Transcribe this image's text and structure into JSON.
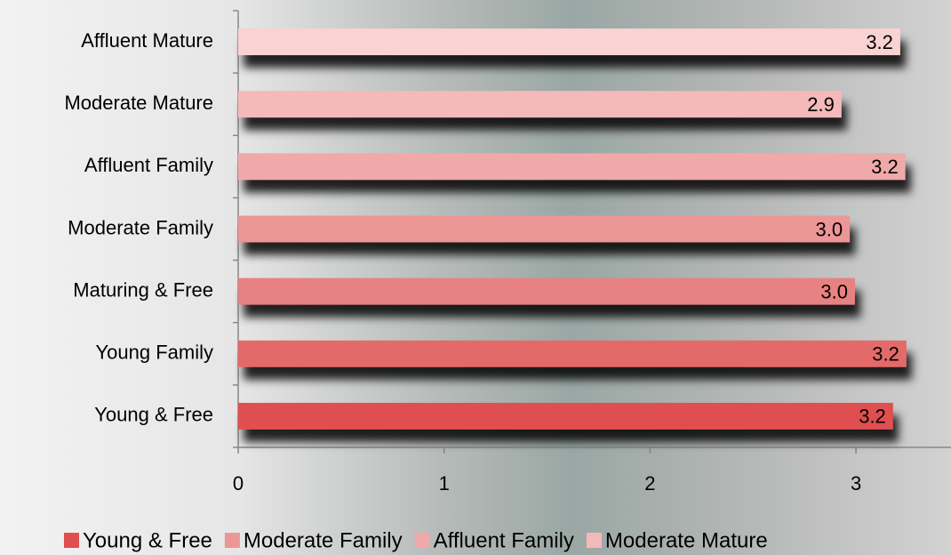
{
  "chart_data": {
    "type": "bar",
    "orientation": "horizontal",
    "categories": [
      "Affluent Mature",
      "Moderate Mature",
      "Affluent Family",
      "Moderate Family",
      "Maturing & Free",
      "Young Family",
      "Young & Free"
    ],
    "values": [
      3.215,
      2.93,
      3.24,
      2.97,
      2.995,
      3.245,
      3.18
    ],
    "value_labels": [
      "3.2",
      "2.9",
      "3.2",
      "3.0",
      "3.0",
      "3.2",
      "3.2"
    ],
    "colors": [
      "#f9d2d2",
      "#f4b9b9",
      "#f0a9a9",
      "#ec9696",
      "#e88181",
      "#e46a6a",
      "#e04f4f"
    ],
    "xlim": [
      0,
      3.44
    ],
    "xticks": [
      0,
      1,
      2,
      3
    ],
    "legend": [
      {
        "name": "Young & Free",
        "color": "#e04f4f"
      },
      {
        "name": "Moderate Family",
        "color": "#ec9696"
      },
      {
        "name": "Affluent Family",
        "color": "#f0a9a9"
      },
      {
        "name": "Moderate Mature",
        "color": "#f4b9b9"
      }
    ]
  }
}
